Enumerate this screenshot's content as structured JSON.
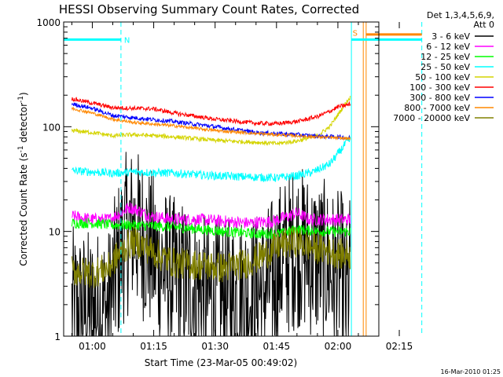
{
  "title": "HESSI Observing Summary Count Rates, Corrected",
  "timestamp": "16-Mar-2010 01:25",
  "chart_data": {
    "type": "line",
    "xlabel": "Start Time (23-Mar-05 00:49:02)",
    "ylabel_parts": [
      "Corrected Count Rate (s",
      "-1",
      " detector",
      "-1",
      ")"
    ],
    "y_scale": "log",
    "x_range_min": [
      53.0,
      130.0
    ],
    "y_range": [
      1,
      1000
    ],
    "grid": false,
    "legend_position": "right",
    "legend_header": [
      "Det 1,3,4,5,6,9,",
      "Att 0"
    ],
    "x_ticks": [
      {
        "min": 60,
        "label": "01:00"
      },
      {
        "min": 75,
        "label": "01:15"
      },
      {
        "min": 90,
        "label": "01:30"
      },
      {
        "min": 105,
        "label": "01:45"
      },
      {
        "min": 120,
        "label": "02:00"
      },
      {
        "min": 135,
        "label": "02:15"
      }
    ],
    "y_ticks": [
      {
        "v": 1,
        "label": "1"
      },
      {
        "v": 10,
        "label": "10"
      },
      {
        "v": 100,
        "label": "100"
      },
      {
        "v": 1000,
        "label": "1000"
      }
    ],
    "series": [
      {
        "name": "3 - 6 keV",
        "color": "#000000",
        "noise": 0.8,
        "points": [
          [
            55,
            1.8
          ],
          [
            60,
            1.7
          ],
          [
            64,
            1.8
          ],
          [
            66,
            4.5
          ],
          [
            68,
            9
          ],
          [
            70,
            11
          ],
          [
            73,
            8
          ],
          [
            76,
            5
          ],
          [
            80,
            3.5
          ],
          [
            85,
            3
          ],
          [
            88,
            2.2
          ],
          [
            92,
            2.2
          ],
          [
            96,
            2.5
          ],
          [
            100,
            2.5
          ],
          [
            103,
            3
          ],
          [
            106,
            5
          ],
          [
            110,
            7.5
          ],
          [
            113,
            6
          ],
          [
            117,
            5
          ],
          [
            119,
            4
          ],
          [
            121,
            4
          ],
          [
            122,
            2
          ],
          [
            123,
            4
          ]
        ]
      },
      {
        "name": "6 - 12 keV",
        "color": "#ff00ff",
        "noise": 0.06,
        "points": [
          [
            55,
            14
          ],
          [
            60,
            13
          ],
          [
            64,
            13
          ],
          [
            67,
            15
          ],
          [
            69,
            17
          ],
          [
            71,
            16
          ],
          [
            74,
            14
          ],
          [
            80,
            13
          ],
          [
            86,
            13
          ],
          [
            92,
            12.5
          ],
          [
            98,
            12
          ],
          [
            104,
            12.5
          ],
          [
            108,
            14
          ],
          [
            110,
            15
          ],
          [
            113,
            13
          ],
          [
            118,
            13
          ],
          [
            123,
            13
          ]
        ]
      },
      {
        "name": "12 - 25 keV",
        "color": "#00ff00",
        "noise": 0.05,
        "points": [
          [
            55,
            12
          ],
          [
            60,
            12
          ],
          [
            65,
            11.5
          ],
          [
            70,
            11.5
          ],
          [
            80,
            11
          ],
          [
            86,
            10.5
          ],
          [
            92,
            10
          ],
          [
            100,
            9.5
          ],
          [
            106,
            9.5
          ],
          [
            110,
            10.5
          ],
          [
            115,
            10
          ],
          [
            120,
            10
          ],
          [
            123,
            10
          ]
        ]
      },
      {
        "name": "25 - 50 keV",
        "color": "#00ffff",
        "noise": 0.04,
        "points": [
          [
            55,
            38
          ],
          [
            60,
            37
          ],
          [
            65,
            36
          ],
          [
            70,
            37
          ],
          [
            80,
            36
          ],
          [
            90,
            34
          ],
          [
            100,
            33
          ],
          [
            105,
            32.5
          ],
          [
            110,
            34
          ],
          [
            114,
            37
          ],
          [
            118,
            44
          ],
          [
            120,
            55
          ],
          [
            122,
            70
          ],
          [
            123,
            75
          ]
        ]
      },
      {
        "name": "50 - 100 keV",
        "color": "#d4d400",
        "noise": 0.02,
        "points": [
          [
            55,
            92
          ],
          [
            60,
            88
          ],
          [
            65,
            82
          ],
          [
            70,
            84
          ],
          [
            80,
            80
          ],
          [
            90,
            74
          ],
          [
            100,
            71
          ],
          [
            105,
            69
          ],
          [
            110,
            73
          ],
          [
            115,
            82
          ],
          [
            118,
            100
          ],
          [
            120,
            130
          ],
          [
            122,
            170
          ],
          [
            123,
            190
          ]
        ]
      },
      {
        "name": "100 - 300 keV",
        "color": "#ff0000",
        "noise": 0.02,
        "points": [
          [
            55,
            185
          ],
          [
            60,
            168
          ],
          [
            65,
            152
          ],
          [
            70,
            150
          ],
          [
            75,
            148
          ],
          [
            80,
            135
          ],
          [
            90,
            118
          ],
          [
            100,
            108
          ],
          [
            105,
            107
          ],
          [
            110,
            112
          ],
          [
            115,
            125
          ],
          [
            118,
            140
          ],
          [
            120,
            155
          ],
          [
            122,
            160
          ],
          [
            123,
            165
          ]
        ]
      },
      {
        "name": "300 - 800 keV",
        "color": "#0000ff",
        "noise": 0.02,
        "points": [
          [
            55,
            165
          ],
          [
            60,
            150
          ],
          [
            65,
            128
          ],
          [
            70,
            122
          ],
          [
            80,
            112
          ],
          [
            90,
            100
          ],
          [
            100,
            88
          ],
          [
            110,
            84
          ],
          [
            115,
            81
          ],
          [
            120,
            80
          ],
          [
            123,
            78
          ]
        ]
      },
      {
        "name": "800 - 7000 keV",
        "color": "#ff8800",
        "noise": 0.015,
        "points": [
          [
            55,
            150
          ],
          [
            60,
            135
          ],
          [
            65,
            118
          ],
          [
            70,
            110
          ],
          [
            80,
            102
          ],
          [
            90,
            92
          ],
          [
            100,
            86
          ],
          [
            110,
            82
          ],
          [
            115,
            80
          ],
          [
            120,
            78
          ],
          [
            123,
            77
          ]
        ]
      },
      {
        "name": "7000 - 20000 keV",
        "color": "#808000",
        "noise": 0.15,
        "points": [
          [
            55,
            4.2
          ],
          [
            60,
            4
          ],
          [
            64,
            4.5
          ],
          [
            66,
            5.8
          ],
          [
            68,
            7
          ],
          [
            70,
            8
          ],
          [
            72,
            7.5
          ],
          [
            76,
            6
          ],
          [
            80,
            5
          ],
          [
            86,
            4.8
          ],
          [
            92,
            4.5
          ],
          [
            98,
            5
          ],
          [
            102,
            6
          ],
          [
            106,
            7.5
          ],
          [
            110,
            8
          ],
          [
            114,
            7
          ],
          [
            118,
            6.5
          ],
          [
            121,
            6
          ],
          [
            123,
            6
          ]
        ]
      }
    ],
    "annotations": [
      {
        "type": "vline",
        "x_min": 53.0,
        "color": "#00ffff",
        "dash": false
      },
      {
        "type": "vline",
        "x_min": 67.0,
        "color": "#00ffff",
        "dash": true
      },
      {
        "type": "vline",
        "x_min": 123.3,
        "color": "#00ffff",
        "dash": false
      },
      {
        "type": "vline",
        "x_min": 126.2,
        "color": "#ff8800",
        "dash": false
      },
      {
        "type": "vline",
        "x_min": 126.9,
        "color": "#ff8800",
        "dash": false
      },
      {
        "type": "vline",
        "x_min": 140.5,
        "color": "#00ffff",
        "dash": true
      },
      {
        "type": "hbar",
        "x1_min": 53.0,
        "x2_min": 67.0,
        "y": 680,
        "color": "#00ffff",
        "label": "N"
      },
      {
        "type": "hbar",
        "x1_min": 123.3,
        "x2_min": 140.5,
        "y": 680,
        "color": "#00ffff",
        "label": ""
      },
      {
        "type": "hbar",
        "x1_min": 126.9,
        "x2_min": 140.5,
        "y": 760,
        "color": "#ff8800",
        "label": ""
      },
      {
        "type": "label",
        "x_min": 123.6,
        "y": 790,
        "color": "#ff8800",
        "text": "S"
      }
    ]
  }
}
